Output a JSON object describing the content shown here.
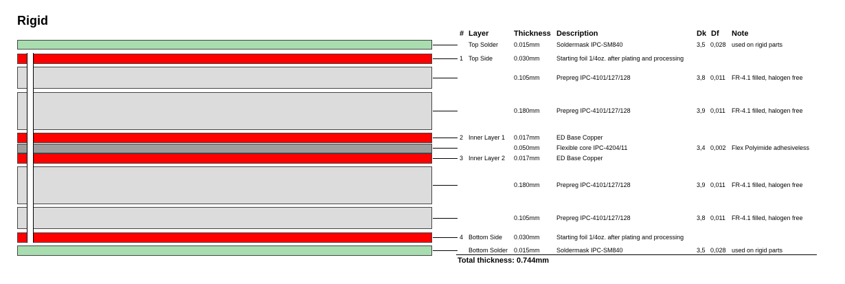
{
  "title": "Rigid",
  "headers": {
    "num": "#",
    "layer": "Layer",
    "thickness": "Thickness",
    "description": "Description",
    "dk": "Dk",
    "df": "Df",
    "note": "Note"
  },
  "colors": {
    "soldermask": "#a8ddb0",
    "copper": "#ff0000",
    "prepreg": "#dcdcdc",
    "core": "#9e9e9e"
  },
  "rows": [
    {
      "num": "",
      "layer": "Top Solder",
      "thickness": "0.015mm",
      "description": "Soldermask IPC-SM840",
      "dk": "3,5",
      "df": "0,028",
      "note": "used on rigid parts"
    },
    {
      "num": "1",
      "layer": "Top Side",
      "thickness": "0.030mm",
      "description": "Starting foil 1/4oz. after plating and processing",
      "dk": "",
      "df": "",
      "note": ""
    },
    {
      "num": "",
      "layer": "",
      "thickness": "0.105mm",
      "description": "Prepreg IPC-4101/127/128",
      "dk": "3,8",
      "df": "0,011",
      "note": "FR-4.1 filled, halogen free"
    },
    {
      "num": "",
      "layer": "",
      "thickness": "0.180mm",
      "description": "Prepreg IPC-4101/127/128",
      "dk": "3,9",
      "df": "0,011",
      "note": "FR-4.1 filled, halogen free"
    },
    {
      "num": "2",
      "layer": "Inner Layer 1",
      "thickness": "0.017mm",
      "description": "ED Base Copper",
      "dk": "",
      "df": "",
      "note": ""
    },
    {
      "num": "",
      "layer": "",
      "thickness": "0.050mm",
      "description": "Flexible core IPC-4204/11",
      "dk": "3,4",
      "df": "0,002",
      "note": "Flex Polyimide adhesiveless"
    },
    {
      "num": "3",
      "layer": "Inner Layer 2",
      "thickness": "0.017mm",
      "description": "ED Base Copper",
      "dk": "",
      "df": "",
      "note": ""
    },
    {
      "num": "",
      "layer": "",
      "thickness": "0.180mm",
      "description": "Prepreg IPC-4101/127/128",
      "dk": "3,9",
      "df": "0,011",
      "note": "FR-4.1 filled, halogen free"
    },
    {
      "num": "",
      "layer": "",
      "thickness": "0.105mm",
      "description": "Prepreg IPC-4101/127/128",
      "dk": "3,8",
      "df": "0,011",
      "note": "FR-4.1 filled, halogen free"
    },
    {
      "num": "4",
      "layer": "Bottom Side",
      "thickness": "0.030mm",
      "description": "Starting foil 1/4oz. after plating and processing",
      "dk": "",
      "df": "",
      "note": ""
    },
    {
      "num": "",
      "layer": "Bottom Solder",
      "thickness": "0.015mm",
      "description": "Soldermask IPC-SM840",
      "dk": "3,5",
      "df": "0,028",
      "note": "used on rigid parts"
    }
  ],
  "total": "Total thickness: 0.744mm"
}
